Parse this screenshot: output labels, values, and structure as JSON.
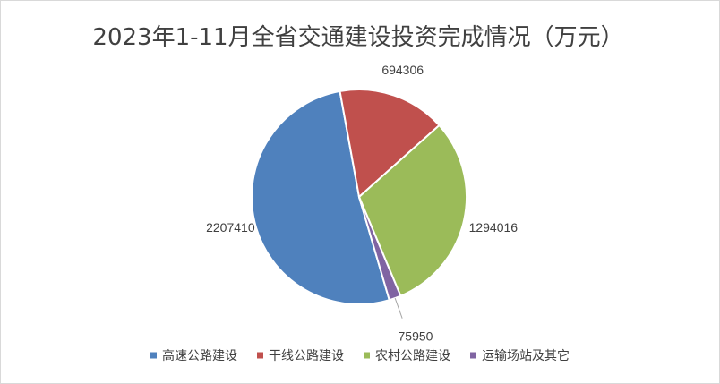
{
  "chart_data": {
    "type": "pie",
    "title": "2023年1-11月全省交通建设投资完成情况（万元）",
    "categories": [
      "高速公路建设",
      "干线公路建设",
      "农村公路建设",
      "运输场站及其它"
    ],
    "values": [
      2207410,
      694306,
      1294016,
      75950
    ],
    "colors": [
      "#4f81bd",
      "#c0504d",
      "#9bbb59",
      "#8064a2"
    ],
    "legend_position": "bottom",
    "data_labels": [
      "2207410",
      "694306",
      "1294016",
      "75950"
    ]
  }
}
